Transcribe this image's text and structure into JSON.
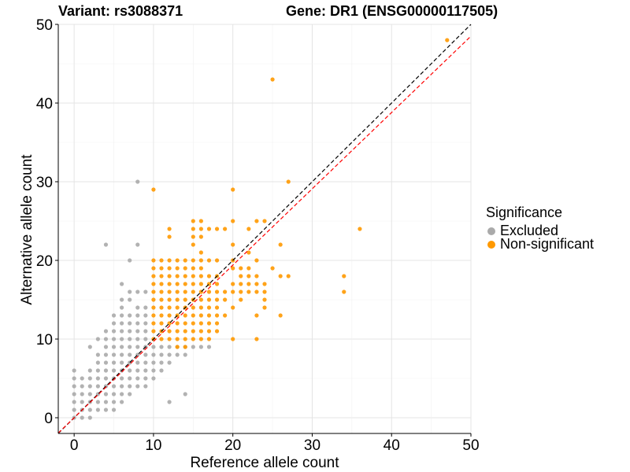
{
  "titles": {
    "variant": "Variant: rs3088371",
    "gene": "Gene: DR1 (ENSG00000117505)"
  },
  "legend": {
    "title": "Significance",
    "items": [
      {
        "label": "Excluded",
        "color": "#aaaaaa"
      },
      {
        "label": "Non-significant",
        "color": "#ff9900"
      }
    ]
  },
  "chart_data": {
    "type": "scatter",
    "xlabel": "Reference allele count",
    "ylabel": "Alternative allele count",
    "xlim": [
      -2,
      50
    ],
    "ylim": [
      -2,
      50
    ],
    "xticks": [
      0,
      10,
      20,
      30,
      40,
      50
    ],
    "yticks": [
      0,
      10,
      20,
      30,
      40,
      50
    ],
    "grid": true,
    "legend_position": "right",
    "reference_lines": [
      {
        "slope": 1.0,
        "intercept": 0,
        "style": "dashed",
        "color": "#000000"
      },
      {
        "slope": 0.97,
        "intercept": 0,
        "style": "dashed",
        "color": "#ff0000"
      }
    ],
    "series": [
      {
        "name": "Excluded",
        "color": "#aaaaaa",
        "points": [
          [
            0,
            0
          ],
          [
            0,
            1
          ],
          [
            0,
            2
          ],
          [
            0,
            3
          ],
          [
            0,
            4
          ],
          [
            0,
            5
          ],
          [
            0,
            6
          ],
          [
            1,
            0
          ],
          [
            1,
            1
          ],
          [
            1,
            2
          ],
          [
            1,
            3
          ],
          [
            1,
            4
          ],
          [
            1,
            5
          ],
          [
            2,
            0
          ],
          [
            2,
            1
          ],
          [
            2,
            2
          ],
          [
            2,
            3
          ],
          [
            2,
            4
          ],
          [
            2,
            5
          ],
          [
            2,
            6
          ],
          [
            2,
            9
          ],
          [
            3,
            1
          ],
          [
            3,
            2
          ],
          [
            3,
            3
          ],
          [
            3,
            4
          ],
          [
            3,
            5
          ],
          [
            3,
            6
          ],
          [
            3,
            7
          ],
          [
            3,
            8
          ],
          [
            3,
            10
          ],
          [
            4,
            1
          ],
          [
            4,
            2
          ],
          [
            4,
            3
          ],
          [
            4,
            4
          ],
          [
            4,
            5
          ],
          [
            4,
            6
          ],
          [
            4,
            7
          ],
          [
            4,
            8
          ],
          [
            4,
            9
          ],
          [
            4,
            10
          ],
          [
            4,
            11
          ],
          [
            4,
            22
          ],
          [
            5,
            1
          ],
          [
            5,
            2
          ],
          [
            5,
            3
          ],
          [
            5,
            4
          ],
          [
            5,
            5
          ],
          [
            5,
            6
          ],
          [
            5,
            7
          ],
          [
            5,
            8
          ],
          [
            5,
            9
          ],
          [
            5,
            10
          ],
          [
            5,
            11
          ],
          [
            5,
            12
          ],
          [
            5,
            13
          ],
          [
            6,
            2
          ],
          [
            6,
            3
          ],
          [
            6,
            4
          ],
          [
            6,
            5
          ],
          [
            6,
            6
          ],
          [
            6,
            7
          ],
          [
            6,
            8
          ],
          [
            6,
            9
          ],
          [
            6,
            10
          ],
          [
            6,
            11
          ],
          [
            6,
            12
          ],
          [
            6,
            13
          ],
          [
            6,
            14
          ],
          [
            6,
            15
          ],
          [
            6,
            17
          ],
          [
            7,
            3
          ],
          [
            7,
            4
          ],
          [
            7,
            5
          ],
          [
            7,
            6
          ],
          [
            7,
            7
          ],
          [
            7,
            8
          ],
          [
            7,
            9
          ],
          [
            7,
            10
          ],
          [
            7,
            11
          ],
          [
            7,
            12
          ],
          [
            7,
            13
          ],
          [
            7,
            15
          ],
          [
            7,
            16
          ],
          [
            7,
            20
          ],
          [
            8,
            4
          ],
          [
            8,
            5
          ],
          [
            8,
            6
          ],
          [
            8,
            7
          ],
          [
            8,
            8
          ],
          [
            8,
            9
          ],
          [
            8,
            10
          ],
          [
            8,
            11
          ],
          [
            8,
            12
          ],
          [
            8,
            13
          ],
          [
            8,
            14
          ],
          [
            8,
            16
          ],
          [
            8,
            22
          ],
          [
            8,
            30
          ],
          [
            9,
            4
          ],
          [
            9,
            5
          ],
          [
            9,
            6
          ],
          [
            9,
            7
          ],
          [
            9,
            8
          ],
          [
            9,
            9
          ],
          [
            9,
            10
          ],
          [
            9,
            11
          ],
          [
            9,
            12
          ],
          [
            9,
            13
          ],
          [
            9,
            14
          ],
          [
            9,
            16
          ],
          [
            10,
            5
          ],
          [
            10,
            6
          ],
          [
            10,
            7
          ],
          [
            10,
            8
          ],
          [
            10,
            9
          ],
          [
            11,
            6
          ],
          [
            11,
            7
          ],
          [
            11,
            8
          ],
          [
            11,
            9
          ],
          [
            12,
            2
          ],
          [
            12,
            7
          ],
          [
            12,
            8
          ],
          [
            12,
            9
          ],
          [
            13,
            8
          ],
          [
            13,
            9
          ],
          [
            14,
            8
          ],
          [
            14,
            9
          ],
          [
            15,
            9
          ],
          [
            16,
            9
          ],
          [
            17,
            9
          ],
          [
            14,
            3
          ]
        ]
      },
      {
        "name": "Non-significant",
        "color": "#ff9900",
        "points": [
          [
            10,
            10
          ],
          [
            10,
            11
          ],
          [
            10,
            12
          ],
          [
            10,
            13
          ],
          [
            10,
            14
          ],
          [
            10,
            15
          ],
          [
            10,
            16
          ],
          [
            10,
            17
          ],
          [
            10,
            18
          ],
          [
            10,
            19
          ],
          [
            10,
            20
          ],
          [
            10,
            29
          ],
          [
            11,
            10
          ],
          [
            11,
            11
          ],
          [
            11,
            12
          ],
          [
            11,
            13
          ],
          [
            11,
            14
          ],
          [
            11,
            15
          ],
          [
            11,
            16
          ],
          [
            11,
            17
          ],
          [
            11,
            18
          ],
          [
            11,
            19
          ],
          [
            11,
            20
          ],
          [
            12,
            10
          ],
          [
            12,
            11
          ],
          [
            12,
            12
          ],
          [
            12,
            13
          ],
          [
            12,
            14
          ],
          [
            12,
            15
          ],
          [
            12,
            16
          ],
          [
            12,
            17
          ],
          [
            12,
            18
          ],
          [
            12,
            19
          ],
          [
            12,
            20
          ],
          [
            12,
            23
          ],
          [
            12,
            24
          ],
          [
            13,
            9
          ],
          [
            13,
            10
          ],
          [
            13,
            11
          ],
          [
            13,
            12
          ],
          [
            13,
            13
          ],
          [
            13,
            14
          ],
          [
            13,
            15
          ],
          [
            13,
            16
          ],
          [
            13,
            17
          ],
          [
            13,
            18
          ],
          [
            13,
            19
          ],
          [
            13,
            20
          ],
          [
            14,
            9
          ],
          [
            14,
            10
          ],
          [
            14,
            11
          ],
          [
            14,
            12
          ],
          [
            14,
            13
          ],
          [
            14,
            14
          ],
          [
            14,
            15
          ],
          [
            14,
            16
          ],
          [
            14,
            17
          ],
          [
            14,
            18
          ],
          [
            14,
            19
          ],
          [
            14,
            20
          ],
          [
            15,
            10
          ],
          [
            15,
            11
          ],
          [
            15,
            12
          ],
          [
            15,
            13
          ],
          [
            15,
            14
          ],
          [
            15,
            15
          ],
          [
            15,
            16
          ],
          [
            15,
            17
          ],
          [
            15,
            18
          ],
          [
            15,
            19
          ],
          [
            15,
            20
          ],
          [
            15,
            22
          ],
          [
            15,
            23
          ],
          [
            15,
            24
          ],
          [
            15,
            25
          ],
          [
            16,
            10
          ],
          [
            16,
            11
          ],
          [
            16,
            12
          ],
          [
            16,
            13
          ],
          [
            16,
            14
          ],
          [
            16,
            15
          ],
          [
            16,
            16
          ],
          [
            16,
            17
          ],
          [
            16,
            18
          ],
          [
            16,
            19
          ],
          [
            16,
            20
          ],
          [
            16,
            21
          ],
          [
            16,
            23
          ],
          [
            16,
            24
          ],
          [
            16,
            25
          ],
          [
            17,
            10
          ],
          [
            17,
            11
          ],
          [
            17,
            12
          ],
          [
            17,
            13
          ],
          [
            17,
            14
          ],
          [
            17,
            15
          ],
          [
            17,
            16
          ],
          [
            17,
            17
          ],
          [
            17,
            18
          ],
          [
            17,
            20
          ],
          [
            17,
            24
          ],
          [
            18,
            11
          ],
          [
            18,
            12
          ],
          [
            18,
            13
          ],
          [
            18,
            14
          ],
          [
            18,
            15
          ],
          [
            18,
            16
          ],
          [
            18,
            17
          ],
          [
            18,
            18
          ],
          [
            18,
            20
          ],
          [
            18,
            24
          ],
          [
            19,
            13
          ],
          [
            19,
            15
          ],
          [
            19,
            16
          ],
          [
            19,
            24
          ],
          [
            20,
            10
          ],
          [
            20,
            14
          ],
          [
            20,
            16
          ],
          [
            20,
            17
          ],
          [
            20,
            19
          ],
          [
            20,
            20
          ],
          [
            20,
            22
          ],
          [
            20,
            25
          ],
          [
            20,
            29
          ],
          [
            21,
            15
          ],
          [
            21,
            16
          ],
          [
            21,
            17
          ],
          [
            21,
            18
          ],
          [
            21,
            19
          ],
          [
            22,
            16
          ],
          [
            22,
            17
          ],
          [
            22,
            18
          ],
          [
            22,
            19
          ],
          [
            22,
            21
          ],
          [
            22,
            24
          ],
          [
            23,
            10
          ],
          [
            23,
            13
          ],
          [
            23,
            16
          ],
          [
            23,
            17
          ],
          [
            23,
            18
          ],
          [
            23,
            20
          ],
          [
            23,
            25
          ],
          [
            24,
            14
          ],
          [
            24,
            15
          ],
          [
            24,
            16
          ],
          [
            24,
            17
          ],
          [
            24,
            25
          ],
          [
            25,
            19
          ],
          [
            25,
            43
          ],
          [
            26,
            13
          ],
          [
            26,
            18
          ],
          [
            26,
            22
          ],
          [
            27,
            18
          ],
          [
            27,
            30
          ],
          [
            34,
            16
          ],
          [
            34,
            18
          ],
          [
            36,
            24
          ],
          [
            47,
            48
          ]
        ]
      }
    ]
  }
}
